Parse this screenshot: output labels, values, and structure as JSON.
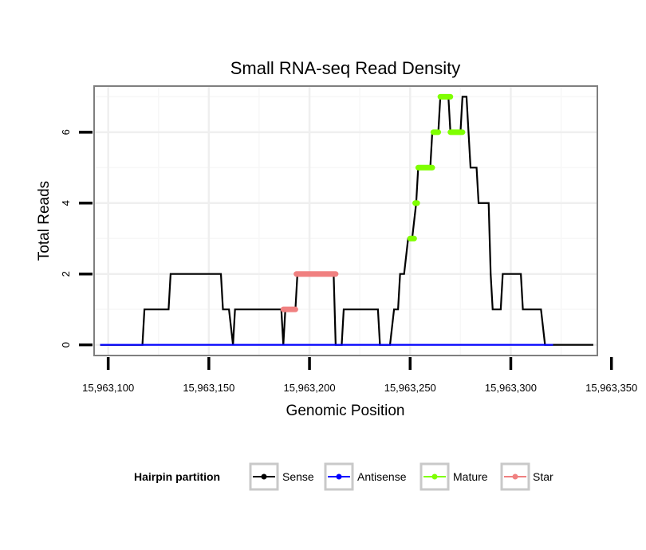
{
  "chart_data": {
    "type": "line",
    "title": "Small RNA-seq Read Density",
    "xlabel": "Genomic Position",
    "ylabel": "Total Reads",
    "xlim": [
      15963093,
      15963343
    ],
    "ylim": [
      -0.3,
      7.3
    ],
    "x_ticks": [
      15963100,
      15963150,
      15963200,
      15963250,
      15963300,
      15963350
    ],
    "x_tick_labels": [
      "15,963,100",
      "15,963,150",
      "15,963,200",
      "15,963,250",
      "15,963,300",
      "15,963,350"
    ],
    "y_ticks": [
      0,
      2,
      4,
      6
    ],
    "y_tick_labels": [
      "0",
      "2",
      "4",
      "6"
    ],
    "grid": true,
    "legend": {
      "title": "Hairpin partition",
      "position": "bottom",
      "entries": [
        {
          "name": "Sense",
          "color": "#000000"
        },
        {
          "name": "Antisense",
          "color": "#0000ff"
        },
        {
          "name": "Mature",
          "color": "#7fff00"
        },
        {
          "name": "Star",
          "color": "#f08080"
        }
      ]
    },
    "series": [
      {
        "name": "Sense",
        "color": "#000000",
        "points": [
          [
            15963096,
            0
          ],
          [
            15963117,
            0
          ],
          [
            15963118,
            1
          ],
          [
            15963130,
            1
          ],
          [
            15963131,
            2
          ],
          [
            15963156,
            2
          ],
          [
            15963157,
            1
          ],
          [
            15963160,
            1
          ],
          [
            15963162,
            0
          ],
          [
            15963163,
            1
          ],
          [
            15963186,
            1
          ],
          [
            15963187,
            0
          ],
          [
            15963188,
            1
          ],
          [
            15963193,
            1
          ],
          [
            15963194,
            2
          ],
          [
            15963212,
            2
          ],
          [
            15963213,
            0
          ],
          [
            15963216,
            0
          ],
          [
            15963217,
            1
          ],
          [
            15963234,
            1
          ],
          [
            15963235,
            0
          ],
          [
            15963240,
            0
          ],
          [
            15963242,
            1
          ],
          [
            15963244,
            1
          ],
          [
            15963245,
            2
          ],
          [
            15963247,
            2
          ],
          [
            15963249,
            3
          ],
          [
            15963251,
            3
          ],
          [
            15963253,
            4
          ],
          [
            15963254,
            5
          ],
          [
            15963260,
            5
          ],
          [
            15963261,
            6
          ],
          [
            15963264,
            6
          ],
          [
            15963265,
            7
          ],
          [
            15963269,
            7
          ],
          [
            15963270,
            6
          ],
          [
            15963275,
            6
          ],
          [
            15963276,
            7
          ],
          [
            15963278,
            7
          ],
          [
            15963280,
            5
          ],
          [
            15963283,
            5
          ],
          [
            15963284,
            4
          ],
          [
            15963289,
            4
          ],
          [
            15963290,
            2
          ],
          [
            15963291,
            1
          ],
          [
            15963295,
            1
          ],
          [
            15963296,
            2
          ],
          [
            15963305,
            2
          ],
          [
            15963306,
            1
          ],
          [
            15963315,
            1
          ],
          [
            15963317,
            0
          ],
          [
            15963341,
            0
          ]
        ]
      },
      {
        "name": "Antisense",
        "color": "#0000ff",
        "points": [
          [
            15963096,
            0
          ],
          [
            15963321,
            0
          ]
        ]
      },
      {
        "name": "Mature",
        "color": "#7fff00",
        "segments": [
          {
            "x": [
              15963250,
              15963252
            ],
            "y": 3
          },
          {
            "x": [
              15963252.5,
              15963253.5
            ],
            "y": 4
          },
          {
            "x": [
              15963254,
              15963261
            ],
            "y": 5
          },
          {
            "x": [
              15963261.5,
              15963264
            ],
            "y": 6
          },
          {
            "x": [
              15963265,
              15963270
            ],
            "y": 7
          },
          {
            "x": [
              15963270,
              15963276
            ],
            "y": 6
          }
        ]
      },
      {
        "name": "Star",
        "color": "#f08080",
        "segments": [
          {
            "x": [
              15963187,
              15963193
            ],
            "y": 1
          },
          {
            "x": [
              15963193.5,
              15963213
            ],
            "y": 2
          }
        ]
      }
    ]
  }
}
